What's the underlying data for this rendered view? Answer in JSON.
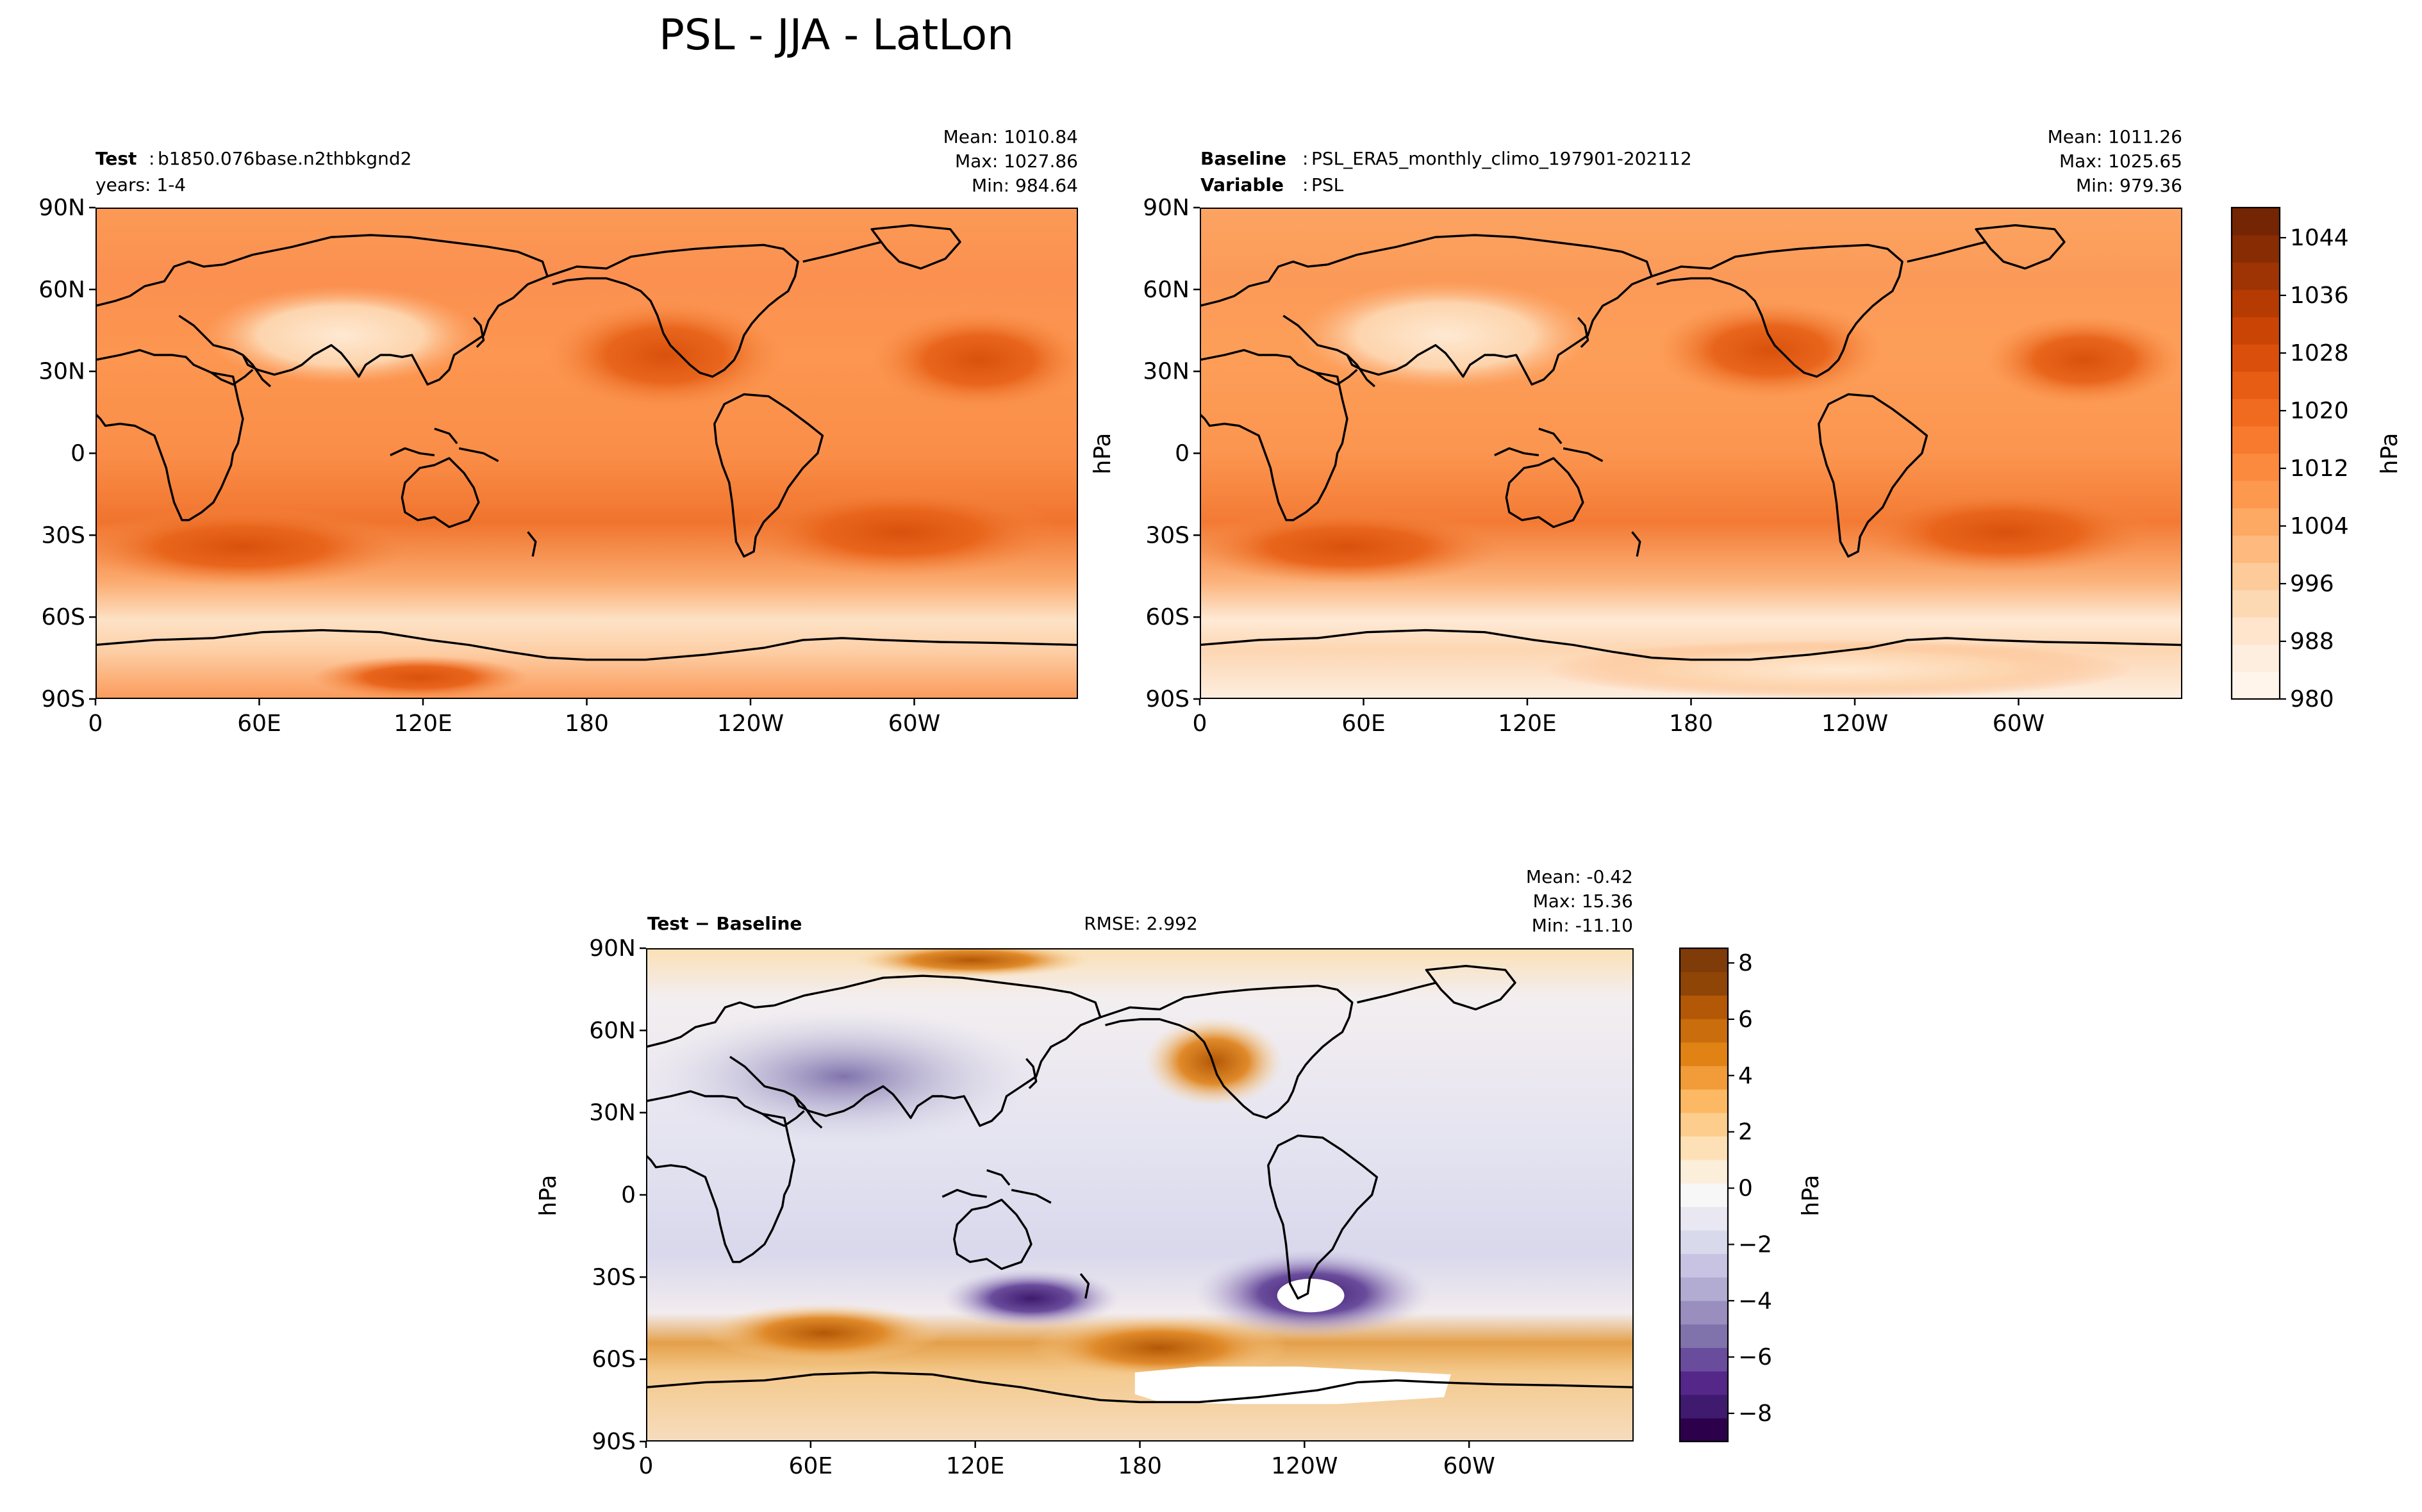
{
  "figure_title": "PSL - JJA - LatLon",
  "panels": {
    "test": {
      "label_bold": "Test",
      "label_value": "b1850.076base.n2thbkgnd2",
      "line2_value": "years: 1-4",
      "mean": "Mean: 1010.84",
      "max": "Max: 1027.86",
      "min": "Min: 984.64"
    },
    "baseline": {
      "label_bold": "Baseline",
      "label_value": "PSL_ERA5_monthly_climo_197901-202112",
      "line2_bold": "Variable",
      "line2_value": "PSL",
      "mean": "Mean: 1011.26",
      "max": "Max: 1025.65",
      "min": "Min: 979.36",
      "ylabel": "hPa"
    },
    "diff": {
      "label": "Test − Baseline",
      "rmse": "RMSE: 2.992",
      "mean": "Mean: -0.42",
      "max": "Max: 15.36",
      "min": "Min: -11.10",
      "ylabel": "hPa"
    }
  },
  "axes": {
    "lat_ticks": [
      "90N",
      "60N",
      "30N",
      "0",
      "30S",
      "60S",
      "90S"
    ],
    "lon_ticks": [
      "0",
      "60E",
      "120E",
      "180",
      "120W",
      "60W"
    ]
  },
  "colorbars": {
    "main": {
      "ticks": [
        "1044",
        "1036",
        "1028",
        "1020",
        "1012",
        "1004",
        "996",
        "988",
        "980"
      ],
      "label": "hPa",
      "colors": [
        "#fff5eb",
        "#feeedf",
        "#fee5cc",
        "#fdd9b3",
        "#fdca99",
        "#fdb97e",
        "#fda863",
        "#fd984f",
        "#fc8a3e",
        "#f77a2e",
        "#f06b1f",
        "#e75d14",
        "#da4f0b",
        "#c94405",
        "#b53b03",
        "#9e3303",
        "#882c03",
        "#742503"
      ]
    },
    "diff": {
      "ticks": [
        "8",
        "6",
        "4",
        "2",
        "0",
        "−2",
        "−4",
        "−6",
        "−8"
      ],
      "label": "hPa",
      "colors": [
        "#2d004b",
        "#3f1a6e",
        "#542788",
        "#6a4c9c",
        "#8073ac",
        "#9a8ebf",
        "#b2abd2",
        "#c8c3e2",
        "#d8daeb",
        "#e9e8f2",
        "#f7f7f7",
        "#fbeedb",
        "#fee0b6",
        "#fdcd8e",
        "#fdb863",
        "#f19c39",
        "#e08214",
        "#c96d0d",
        "#b35806",
        "#8f4506",
        "#7f3b08"
      ]
    }
  },
  "chart_data": [
    {
      "type": "heatmap",
      "name": "Test",
      "title": "Test: b1850.076base.n2thbkgnd2",
      "variable": "PSL",
      "units": "hPa",
      "stats": {
        "mean": 1010.84,
        "max": 1027.86,
        "min": 984.64
      },
      "x_ticks": [
        "0",
        "60E",
        "120E",
        "180",
        "120W",
        "60W"
      ],
      "y_ticks": [
        "90N",
        "60N",
        "30N",
        "0",
        "30S",
        "60S",
        "90S"
      ],
      "clim": [
        980,
        1048
      ]
    },
    {
      "type": "heatmap",
      "name": "Baseline",
      "title": "Baseline: PSL_ERA5_monthly_climo_197901-202112",
      "variable": "PSL",
      "units": "hPa",
      "stats": {
        "mean": 1011.26,
        "max": 1025.65,
        "min": 979.36
      },
      "x_ticks": [
        "0",
        "60E",
        "120E",
        "180",
        "120W",
        "60W"
      ],
      "y_ticks": [
        "90N",
        "60N",
        "30N",
        "0",
        "30S",
        "60S",
        "90S"
      ],
      "clim": [
        980,
        1048
      ]
    },
    {
      "type": "heatmap",
      "name": "Test - Baseline",
      "units": "hPa",
      "stats": {
        "mean": -0.42,
        "max": 15.36,
        "min": -11.1,
        "rmse": 2.992
      },
      "x_ticks": [
        "0",
        "60E",
        "120E",
        "180",
        "120W",
        "60W"
      ],
      "y_ticks": [
        "90N",
        "60N",
        "30N",
        "0",
        "30S",
        "60S",
        "90S"
      ],
      "clim": [
        -9,
        9
      ]
    }
  ]
}
